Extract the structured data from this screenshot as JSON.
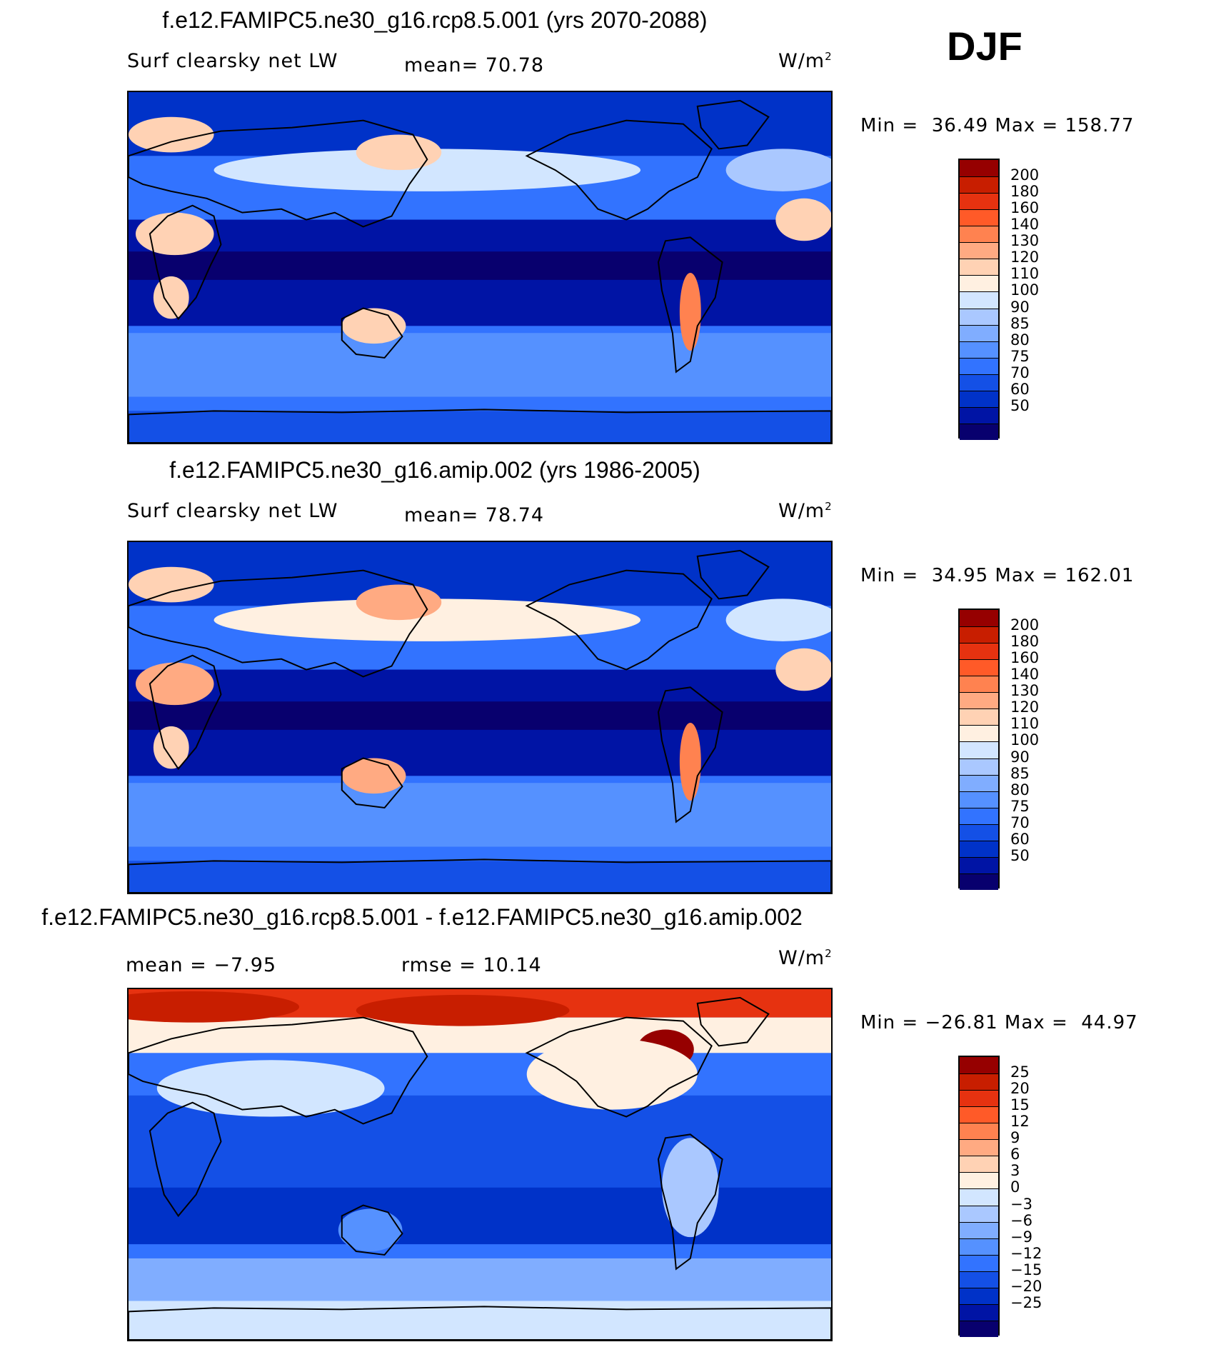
{
  "season": "DJF",
  "panels": [
    {
      "title": "f.e12.FAMIPC5.ne30_g16.rcp8.5.001 (yrs 2070-2088)",
      "left_label": "Surf clearsky net LW",
      "center_label": "mean=  70.78",
      "units": "W/m",
      "units_sup": "2",
      "minmax": "Min =  36.49 Max = 158.77",
      "palette": [
        "#08006e",
        "#0014a5",
        "#0032c8",
        "#1450e6",
        "#3273ff",
        "#5591ff",
        "#80adff",
        "#aac8ff",
        "#d2e6ff",
        "#fff0e1",
        "#ffd2b4",
        "#ffaa82",
        "#ff8250",
        "#ff5a28",
        "#e63210",
        "#c81e00",
        "#960000"
      ],
      "ticks": [
        "200",
        "180",
        "160",
        "140",
        "130",
        "120",
        "110",
        "100",
        "90",
        "85",
        "80",
        "75",
        "70",
        "60",
        "50"
      ],
      "variant": "current"
    },
    {
      "title": "f.e12.FAMIPC5.ne30_g16.amip.002 (yrs 1986-2005)",
      "left_label": "Surf clearsky net LW",
      "center_label": "mean=  78.74",
      "units": "W/m",
      "units_sup": "2",
      "minmax": "Min =  34.95 Max = 162.01",
      "palette": [
        "#08006e",
        "#0014a5",
        "#0032c8",
        "#1450e6",
        "#3273ff",
        "#5591ff",
        "#80adff",
        "#aac8ff",
        "#d2e6ff",
        "#fff0e1",
        "#ffd2b4",
        "#ffaa82",
        "#ff8250",
        "#ff5a28",
        "#e63210",
        "#c81e00",
        "#960000"
      ],
      "ticks": [
        "200",
        "180",
        "160",
        "140",
        "130",
        "120",
        "110",
        "100",
        "90",
        "85",
        "80",
        "75",
        "70",
        "60",
        "50"
      ],
      "variant": "historical"
    },
    {
      "title": "f.e12.FAMIPC5.ne30_g16.rcp8.5.001 - f.e12.FAMIPC5.ne30_g16.amip.002",
      "left_label": "mean =  −7.95",
      "center_label": "rmse =  10.14",
      "units": "W/m",
      "units_sup": "2",
      "minmax": "Min = −26.81 Max =  44.97",
      "palette": [
        "#08006e",
        "#0014a5",
        "#0032c8",
        "#1450e6",
        "#3273ff",
        "#5591ff",
        "#80adff",
        "#aac8ff",
        "#d2e6ff",
        "#fff0e1",
        "#ffd2b4",
        "#ffaa82",
        "#ff8250",
        "#ff5a28",
        "#e63210",
        "#c81e00",
        "#960000"
      ],
      "ticks": [
        "25",
        "20",
        "15",
        "12",
        "9",
        "6",
        "3",
        "0",
        "−3",
        "−6",
        "−9",
        "−12",
        "−15",
        "−20",
        "−25"
      ],
      "variant": "difference"
    }
  ]
}
